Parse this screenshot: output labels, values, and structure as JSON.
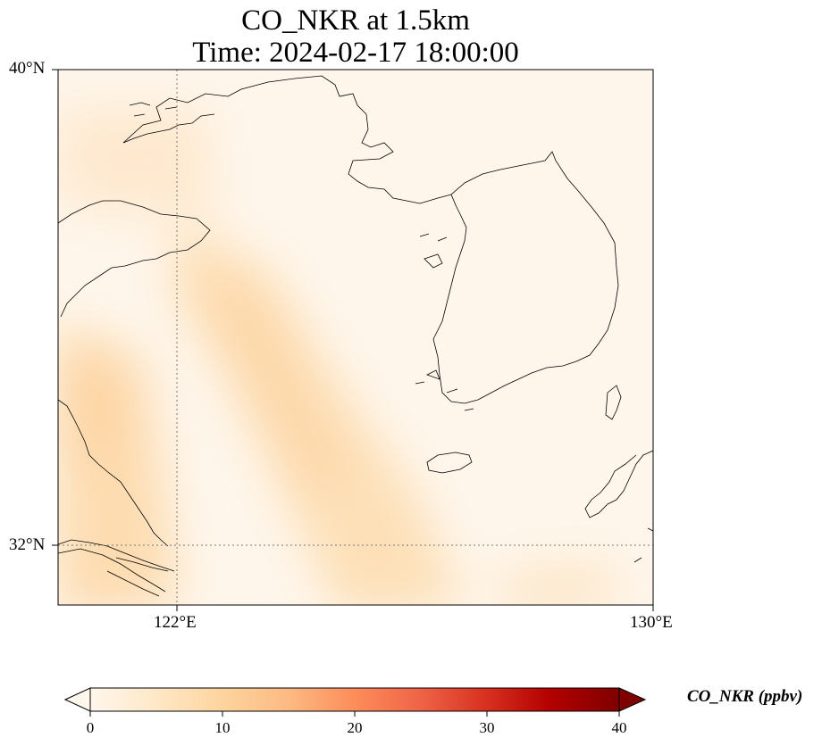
{
  "title": {
    "line1": "CO_NKR at 1.5km",
    "line2": "Time: 2024-02-17 18:00:00"
  },
  "map": {
    "lat_range": [
      31.0,
      40.0
    ],
    "lon_range": [
      120.0,
      130.0
    ],
    "gridlines": {
      "lat": [
        {
          "value": 32,
          "label": "32°N"
        },
        {
          "value": 40,
          "label": "40°N"
        }
      ],
      "lon": [
        {
          "value": 122,
          "label": "122°E"
        },
        {
          "value": 130,
          "label": "130°E"
        }
      ],
      "style": "dotted"
    },
    "coastlines": true
  },
  "colorbar": {
    "label": "CO_NKR (ppbv)",
    "colormap": "OrRd",
    "range": [
      0,
      40
    ],
    "ticks": [
      "0",
      "10",
      "20",
      "30",
      "40"
    ],
    "extend": "both",
    "colors": [
      "#fff7ec",
      "#fee8c8",
      "#fdd49e",
      "#fdbb84",
      "#fc8d59",
      "#ef6548",
      "#d7301f",
      "#b30000",
      "#7f0000"
    ]
  },
  "chart_data": {
    "type": "heatmap",
    "variable": "CO_NKR",
    "units": "ppbv",
    "level": "1.5km",
    "time": "2024-02-17 18:00:00",
    "clim": [
      0,
      40
    ],
    "value_range_observed": [
      0,
      10
    ],
    "features": [
      {
        "area": "band from Shandong peninsula southeast toward the East China Sea",
        "value_approx": 8
      },
      {
        "area": "Jiangsu coast near 33-34°N",
        "value_approx": 9
      },
      {
        "area": "Korean Peninsula and northern seas",
        "value_approx": 1
      }
    ]
  }
}
